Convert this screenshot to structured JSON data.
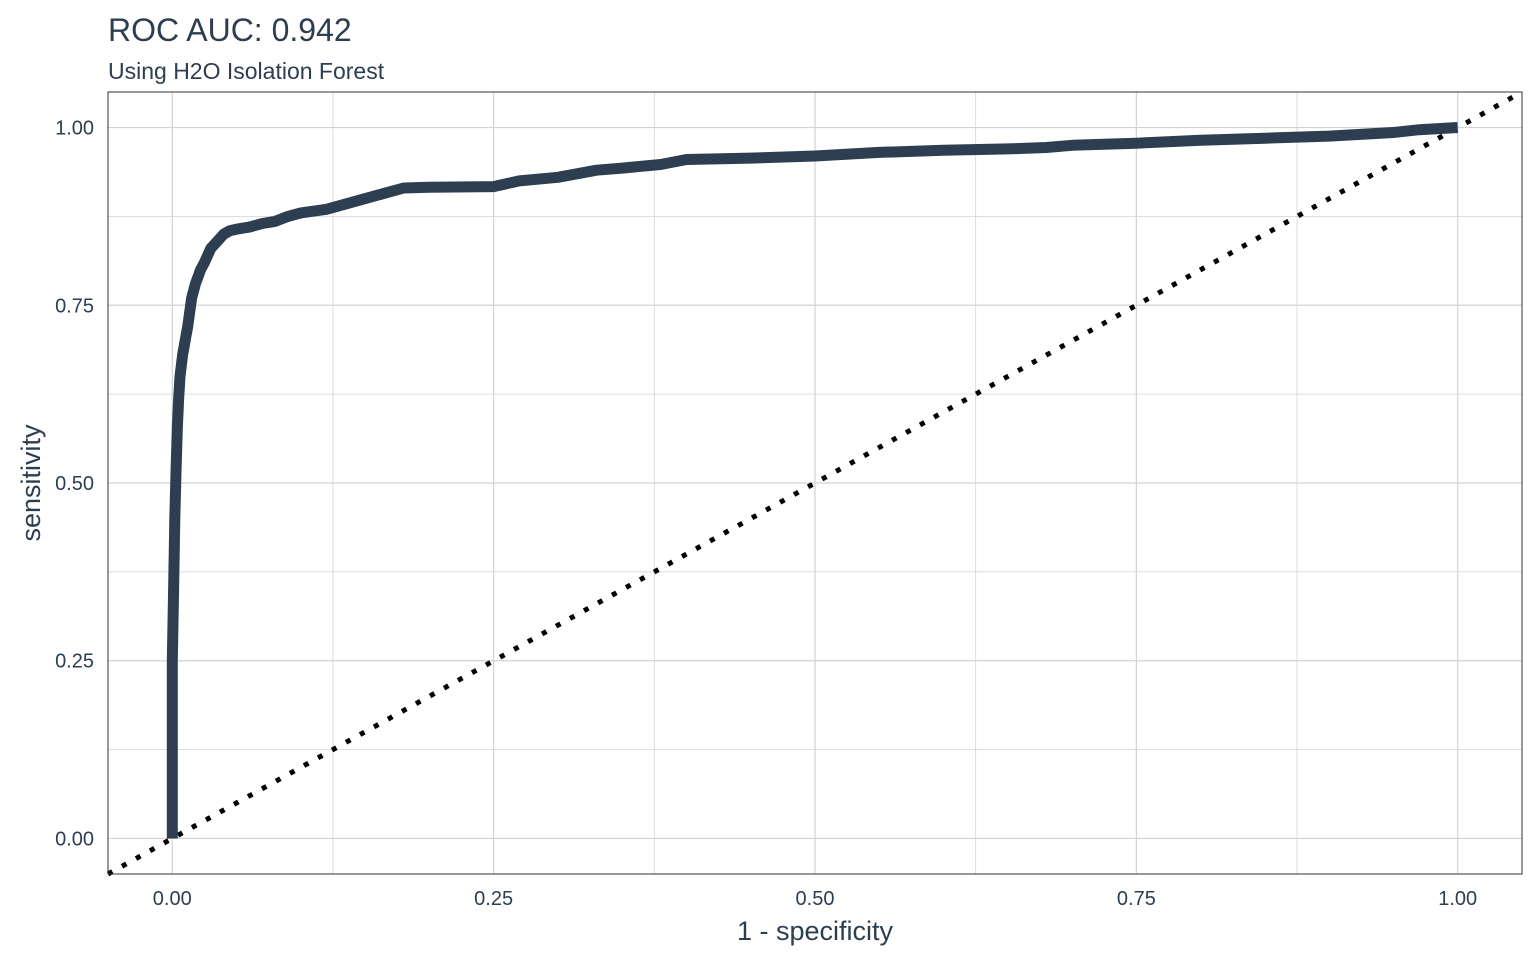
{
  "chart_data": {
    "type": "line",
    "title": "ROC AUC: 0.942",
    "subtitle": "Using H2O Isolation Forest",
    "xlabel": "1 - specificity",
    "ylabel": "sensitivity",
    "xlim": [
      -0.05,
      1.05
    ],
    "ylim": [
      -0.05,
      1.05
    ],
    "x_ticks": [
      0.0,
      0.25,
      0.5,
      0.75,
      1.0
    ],
    "x_tick_labels": [
      "0.00",
      "0.25",
      "0.50",
      "0.75",
      "1.00"
    ],
    "y_ticks": [
      0.0,
      0.25,
      0.5,
      0.75,
      1.0
    ],
    "y_tick_labels": [
      "0.00",
      "0.25",
      "0.50",
      "0.75",
      "1.00"
    ],
    "grid": true,
    "colors": {
      "curve": "#2c3e50",
      "reference": "#000000",
      "grid": "#d3d3d3",
      "text": "#2c3e50"
    },
    "series": [
      {
        "style": "solid-thick",
        "x": [
          0.0,
          0.0,
          0.001,
          0.002,
          0.003,
          0.004,
          0.005,
          0.006,
          0.008,
          0.01,
          0.012,
          0.015,
          0.018,
          0.02,
          0.022,
          0.025,
          0.03,
          0.035,
          0.04,
          0.045,
          0.05,
          0.06,
          0.07,
          0.08,
          0.09,
          0.1,
          0.12,
          0.14,
          0.16,
          0.18,
          0.2,
          0.25,
          0.27,
          0.3,
          0.33,
          0.35,
          0.38,
          0.4,
          0.45,
          0.5,
          0.55,
          0.6,
          0.65,
          0.68,
          0.7,
          0.75,
          0.8,
          0.85,
          0.9,
          0.95,
          0.97,
          1.0
        ],
        "y": [
          0.0,
          0.25,
          0.35,
          0.45,
          0.52,
          0.58,
          0.62,
          0.65,
          0.68,
          0.7,
          0.72,
          0.76,
          0.78,
          0.79,
          0.8,
          0.81,
          0.83,
          0.84,
          0.85,
          0.855,
          0.857,
          0.86,
          0.865,
          0.868,
          0.875,
          0.88,
          0.885,
          0.895,
          0.905,
          0.915,
          0.916,
          0.917,
          0.925,
          0.93,
          0.94,
          0.943,
          0.948,
          0.955,
          0.957,
          0.96,
          0.965,
          0.968,
          0.97,
          0.972,
          0.975,
          0.978,
          0.982,
          0.985,
          0.988,
          0.993,
          0.997,
          1.0
        ]
      },
      {
        "style": "dotted",
        "x": [
          -0.05,
          1.05
        ],
        "y": [
          -0.05,
          1.05
        ]
      }
    ]
  }
}
